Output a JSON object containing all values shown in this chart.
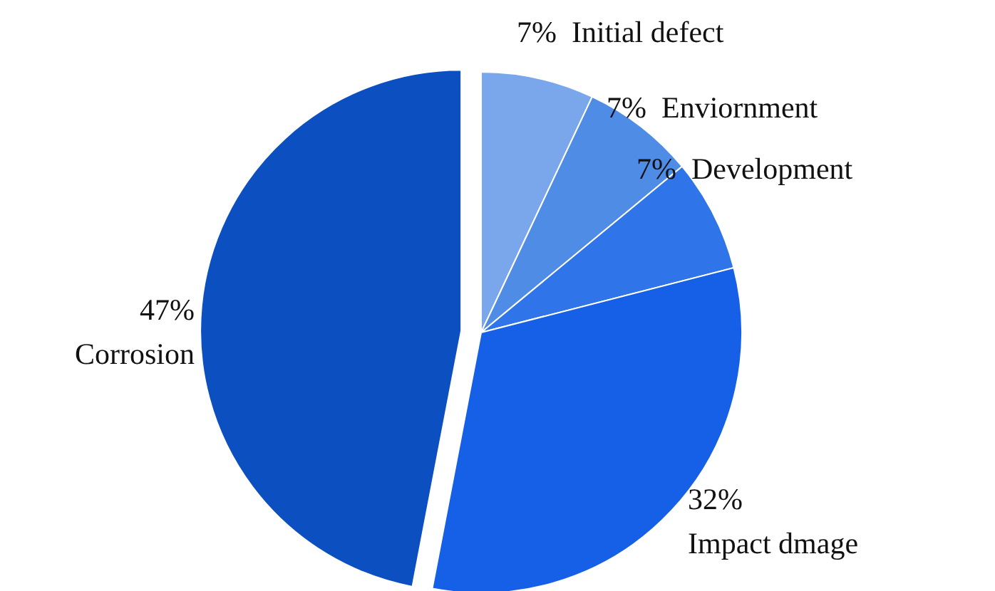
{
  "chart_data": {
    "type": "pie",
    "categories": [
      "Initial defect",
      "Enviornment",
      "Development",
      "Impact dmage",
      "Corrosion"
    ],
    "values": [
      7,
      7,
      7,
      32,
      47
    ],
    "value_labels": [
      "7%",
      "7%",
      "7%",
      "32%",
      "47%"
    ],
    "colors": [
      "#7aa7ec",
      "#4f8ce6",
      "#2f74e8",
      "#1560e6",
      "#0c4fc0"
    ]
  }
}
